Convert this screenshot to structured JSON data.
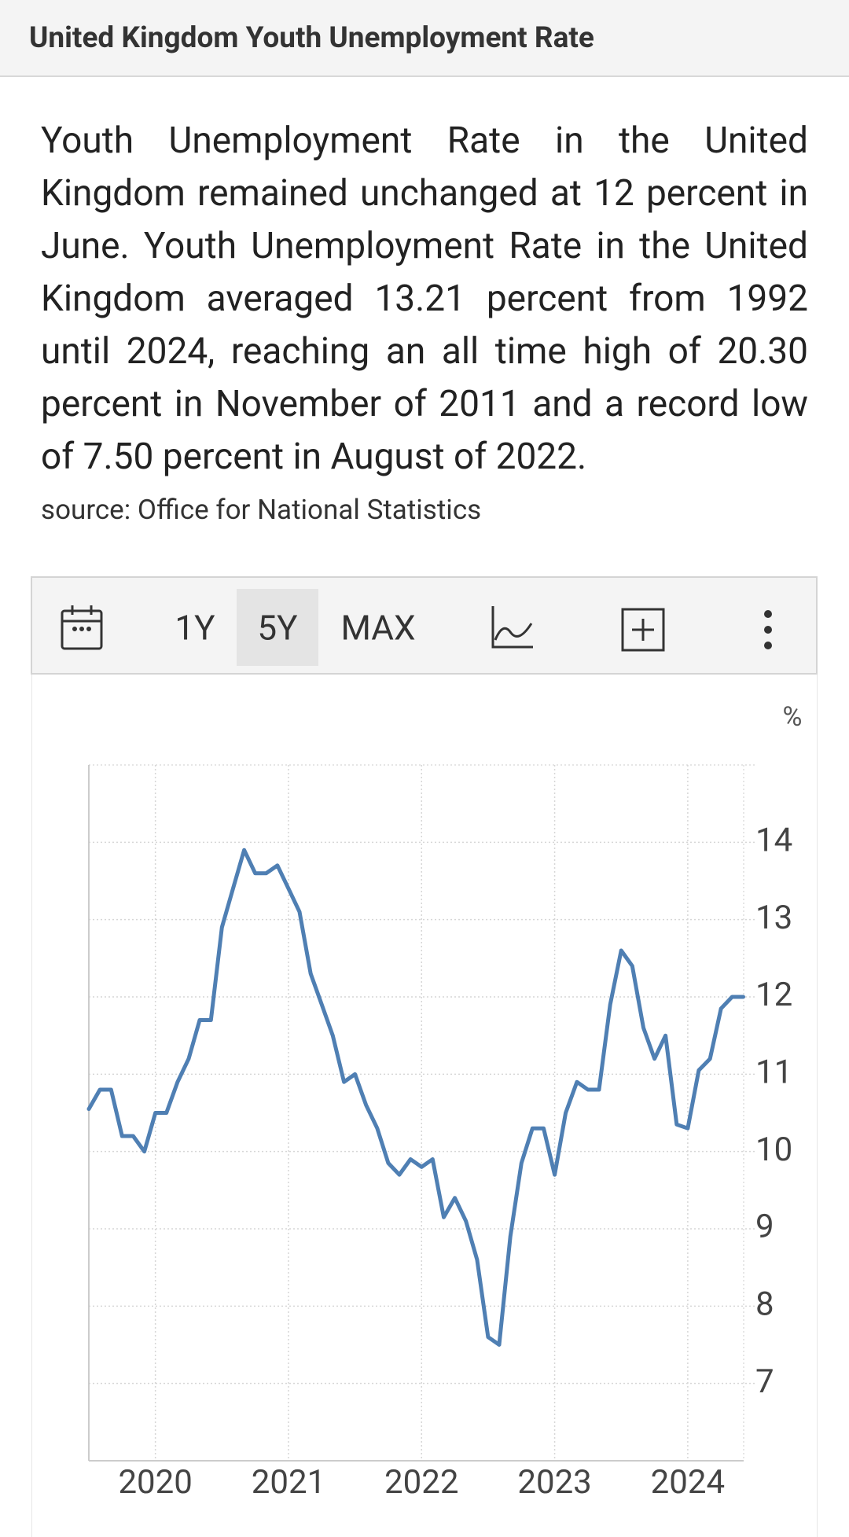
{
  "header": {
    "title": "United Kingdom Youth Unemployment Rate"
  },
  "description": "Youth Unemployment Rate in the United Kingdom remained unchanged at 12 percent in June. Youth Unemployment Rate in the United Kingdom averaged 13.21 percent from 1992 until 2024, reaching an all time high of 20.30 percent in November of 2011 and a record low of 7.50 percent in August of 2022.",
  "source": "source: Office for National Statistics",
  "toolbar": {
    "ranges": [
      "1Y",
      "5Y",
      "MAX"
    ],
    "selected": "5Y"
  },
  "chart_data": {
    "type": "line",
    "unit": "%",
    "x": [
      2019.5,
      2019.583,
      2019.667,
      2019.75,
      2019.833,
      2019.917,
      2020,
      2020.083,
      2020.167,
      2020.25,
      2020.333,
      2020.417,
      2020.5,
      2020.583,
      2020.667,
      2020.75,
      2020.833,
      2020.917,
      2021,
      2021.083,
      2021.167,
      2021.25,
      2021.333,
      2021.417,
      2021.5,
      2021.583,
      2021.667,
      2021.75,
      2021.833,
      2021.917,
      2022,
      2022.083,
      2022.167,
      2022.25,
      2022.333,
      2022.417,
      2022.5,
      2022.583,
      2022.667,
      2022.75,
      2022.833,
      2022.917,
      2023,
      2023.083,
      2023.167,
      2023.25,
      2023.333,
      2023.417,
      2023.5,
      2023.583,
      2023.667,
      2023.75,
      2023.833,
      2023.917,
      2024,
      2024.083,
      2024.167,
      2024.25,
      2024.333,
      2024.417
    ],
    "series": [
      {
        "name": "Youth Unemployment Rate",
        "color": "#4f7fb3",
        "values": [
          10.55,
          10.8,
          10.8,
          10.2,
          10.2,
          10.0,
          10.5,
          10.5,
          10.9,
          11.2,
          11.7,
          11.7,
          12.9,
          13.4,
          13.9,
          13.6,
          13.6,
          13.7,
          13.4,
          13.1,
          12.3,
          11.9,
          11.5,
          10.9,
          11.0,
          10.6,
          10.3,
          9.85,
          9.7,
          9.9,
          9.8,
          9.9,
          9.15,
          9.4,
          9.1,
          8.6,
          7.6,
          7.5,
          8.9,
          9.85,
          10.3,
          10.3,
          9.7,
          10.5,
          10.9,
          10.8,
          10.8,
          11.9,
          12.6,
          12.4,
          11.6,
          11.2,
          11.5,
          10.35,
          10.3,
          11.05,
          11.2,
          11.85,
          12.0,
          12.0
        ]
      }
    ],
    "xlim": [
      2019.5,
      2024.42
    ],
    "xticks": [
      2020,
      2021,
      2022,
      2023,
      2024
    ],
    "ylim": [
      6,
      15
    ],
    "yticks": [
      7,
      8,
      9,
      10,
      11,
      12,
      13,
      14
    ],
    "grid": true
  }
}
